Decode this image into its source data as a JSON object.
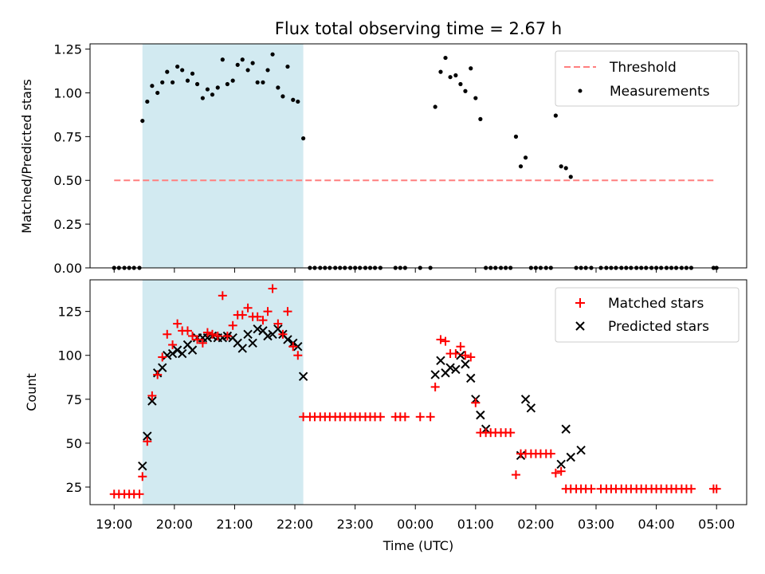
{
  "chart_data": [
    {
      "type": "scatter",
      "title": "Flux total observing time = 2.67 h",
      "ylabel": "Matched/Predicted stars",
      "xlabel": "",
      "ylim": [
        0,
        1.28
      ],
      "yticks": [
        "0.00",
        "0.25",
        "0.50",
        "0.75",
        "1.00",
        "1.25"
      ],
      "ytick_values": [
        0,
        0.25,
        0.5,
        0.75,
        1.0,
        1.25
      ],
      "xlim": [
        18.6,
        5.5
      ],
      "shaded_interval": [
        19.47,
        22.14
      ],
      "shade_color": "#add8e6",
      "legend_position": "top-right",
      "threshold": {
        "name": "Threshold",
        "y": 0.5,
        "x": [
          19.0,
          5.0
        ],
        "color": "#ff7f7f"
      },
      "series": [
        {
          "name": "Measurements",
          "color": "#000000",
          "x": [
            19.0,
            19.08,
            19.17,
            19.25,
            19.33,
            19.42,
            19.47,
            19.55,
            19.63,
            19.72,
            19.8,
            19.88,
            19.97,
            20.05,
            20.13,
            20.22,
            20.3,
            20.38,
            20.47,
            20.55,
            20.63,
            20.72,
            20.8,
            20.88,
            20.97,
            21.05,
            21.13,
            21.22,
            21.3,
            21.38,
            21.47,
            21.55,
            21.63,
            21.72,
            21.8,
            21.88,
            21.97,
            22.05,
            22.14,
            22.25,
            22.33,
            22.42,
            22.5,
            22.58,
            22.67,
            22.75,
            22.83,
            22.92,
            23.0,
            23.08,
            23.17,
            23.25,
            23.33,
            23.42,
            23.67,
            23.75,
            23.83,
            24.08,
            24.25,
            24.33,
            24.42,
            24.5,
            24.58,
            24.67,
            24.75,
            24.83,
            24.92,
            25.0,
            25.08,
            25.17,
            25.25,
            25.33,
            25.42,
            25.5,
            25.58,
            25.67,
            25.75,
            25.83,
            25.92,
            26.0,
            26.08,
            26.17,
            26.25,
            26.33,
            26.42,
            26.5,
            26.58,
            26.67,
            26.75,
            26.83,
            26.92,
            27.08,
            27.17,
            27.25,
            27.33,
            27.42,
            27.5,
            27.58,
            27.67,
            27.75,
            27.83,
            27.92,
            28.0,
            28.08,
            28.17,
            28.25,
            28.33,
            28.42,
            28.5,
            28.58,
            28.95,
            29.0
          ],
          "y": [
            0,
            0,
            0,
            0,
            0,
            0,
            0.84,
            0.95,
            1.04,
            1.0,
            1.06,
            1.12,
            1.06,
            1.15,
            1.13,
            1.07,
            1.11,
            1.05,
            0.97,
            1.02,
            0.99,
            1.03,
            1.19,
            1.05,
            1.07,
            1.16,
            1.19,
            1.13,
            1.17,
            1.06,
            1.06,
            1.13,
            1.22,
            1.03,
            0.98,
            1.15,
            0.96,
            0.95,
            0.74,
            0,
            0,
            0,
            0,
            0,
            0,
            0,
            0,
            0,
            0,
            0,
            0,
            0,
            0,
            0,
            0,
            0,
            0,
            0,
            0,
            0.92,
            1.12,
            1.2,
            1.09,
            1.1,
            1.05,
            1.01,
            1.14,
            0.97,
            0.85,
            0,
            0,
            0,
            0,
            0,
            0,
            0.75,
            0.58,
            0.63,
            0,
            0,
            0,
            0,
            0,
            0.87,
            0.58,
            0.57,
            0.52,
            0,
            0,
            0,
            0,
            0,
            0,
            0,
            0,
            0,
            0,
            0,
            0,
            0,
            0,
            0,
            0,
            0,
            0,
            0,
            0,
            0,
            0,
            0,
            0,
            0
          ]
        }
      ]
    },
    {
      "type": "scatter",
      "title": "",
      "xlabel": "Time (UTC)",
      "ylabel": "Count",
      "ylim": [
        15,
        143
      ],
      "yticks": [
        "25",
        "50",
        "75",
        "100",
        "125"
      ],
      "ytick_values": [
        25,
        50,
        75,
        100,
        125
      ],
      "xlim": [
        18.6,
        5.5
      ],
      "xticks": [
        "19:00",
        "20:00",
        "21:00",
        "22:00",
        "23:00",
        "00:00",
        "01:00",
        "02:00",
        "03:00",
        "04:00",
        "05:00"
      ],
      "xtick_values": [
        19,
        20,
        21,
        22,
        23,
        24,
        25,
        26,
        27,
        28,
        29
      ],
      "shaded_interval": [
        19.47,
        22.14
      ],
      "shade_color": "#add8e6",
      "legend_position": "top-right",
      "series": [
        {
          "name": "Matched stars",
          "marker": "plus",
          "color": "#ff0000",
          "x": [
            19.0,
            19.08,
            19.17,
            19.25,
            19.33,
            19.42,
            19.47,
            19.55,
            19.63,
            19.72,
            19.8,
            19.88,
            19.97,
            20.05,
            20.13,
            20.22,
            20.3,
            20.38,
            20.47,
            20.55,
            20.63,
            20.72,
            20.8,
            20.88,
            20.97,
            21.05,
            21.13,
            21.22,
            21.3,
            21.38,
            21.47,
            21.55,
            21.63,
            21.72,
            21.8,
            21.88,
            21.97,
            22.05,
            22.14,
            22.25,
            22.33,
            22.42,
            22.5,
            22.58,
            22.67,
            22.75,
            22.83,
            22.92,
            23.0,
            23.08,
            23.17,
            23.25,
            23.33,
            23.42,
            23.67,
            23.75,
            23.83,
            24.08,
            24.25,
            24.33,
            24.42,
            24.5,
            24.58,
            24.67,
            24.75,
            24.83,
            24.92,
            25.0,
            25.08,
            25.17,
            25.25,
            25.33,
            25.42,
            25.5,
            25.58,
            25.67,
            25.75,
            25.83,
            25.92,
            26.0,
            26.08,
            26.17,
            26.25,
            26.33,
            26.42,
            26.5,
            26.58,
            26.67,
            26.75,
            26.83,
            26.92,
            27.08,
            27.17,
            27.25,
            27.33,
            27.42,
            27.5,
            27.58,
            27.67,
            27.75,
            27.83,
            27.92,
            28.0,
            28.08,
            28.17,
            28.25,
            28.33,
            28.42,
            28.5,
            28.58,
            28.95,
            29.0
          ],
          "y": [
            21,
            21,
            21,
            21,
            21,
            21,
            31,
            51,
            77,
            89,
            99,
            112,
            106,
            118,
            114,
            114,
            111,
            109,
            107,
            113,
            112,
            111,
            134,
            111,
            117,
            123,
            123,
            127,
            122,
            122,
            120,
            125,
            138,
            118,
            112,
            125,
            105,
            100,
            65,
            65,
            65,
            65,
            65,
            65,
            65,
            65,
            65,
            65,
            65,
            65,
            65,
            65,
            65,
            65,
            65,
            65,
            65,
            65,
            65,
            82,
            109,
            108,
            101,
            101,
            105,
            100,
            99,
            73,
            56,
            56,
            56,
            56,
            56,
            56,
            56,
            32,
            44,
            44,
            44,
            44,
            44,
            44,
            44,
            33,
            34,
            24,
            24,
            24,
            24,
            24,
            24,
            24,
            24,
            24,
            24,
            24,
            24,
            24,
            24,
            24,
            24,
            24,
            24,
            24,
            24,
            24,
            24,
            24,
            24,
            24,
            24,
            24
          ]
        },
        {
          "name": "Predicted stars",
          "marker": "x",
          "color": "#000000",
          "x": [
            19.47,
            19.55,
            19.63,
            19.72,
            19.8,
            19.88,
            19.97,
            20.05,
            20.13,
            20.22,
            20.3,
            20.38,
            20.47,
            20.55,
            20.63,
            20.72,
            20.8,
            20.88,
            20.97,
            21.05,
            21.13,
            21.22,
            21.3,
            21.38,
            21.47,
            21.55,
            21.63,
            21.72,
            21.8,
            21.88,
            21.97,
            22.05,
            22.14,
            24.33,
            24.42,
            24.5,
            24.58,
            24.67,
            24.75,
            24.83,
            24.92,
            25.0,
            25.08,
            25.17,
            25.75,
            25.83,
            25.92,
            26.42,
            26.5,
            26.58,
            26.75
          ],
          "y": [
            37,
            54,
            74,
            90,
            93,
            100,
            101,
            103,
            101,
            106,
            103,
            110,
            110,
            110,
            111,
            110,
            110,
            111,
            110,
            107,
            104,
            112,
            107,
            115,
            114,
            111,
            112,
            115,
            112,
            109,
            107,
            105,
            88,
            89,
            97,
            90,
            93,
            92,
            100,
            95,
            87,
            75,
            66,
            58,
            43,
            75,
            70,
            38,
            58,
            42,
            46
          ]
        }
      ]
    }
  ]
}
